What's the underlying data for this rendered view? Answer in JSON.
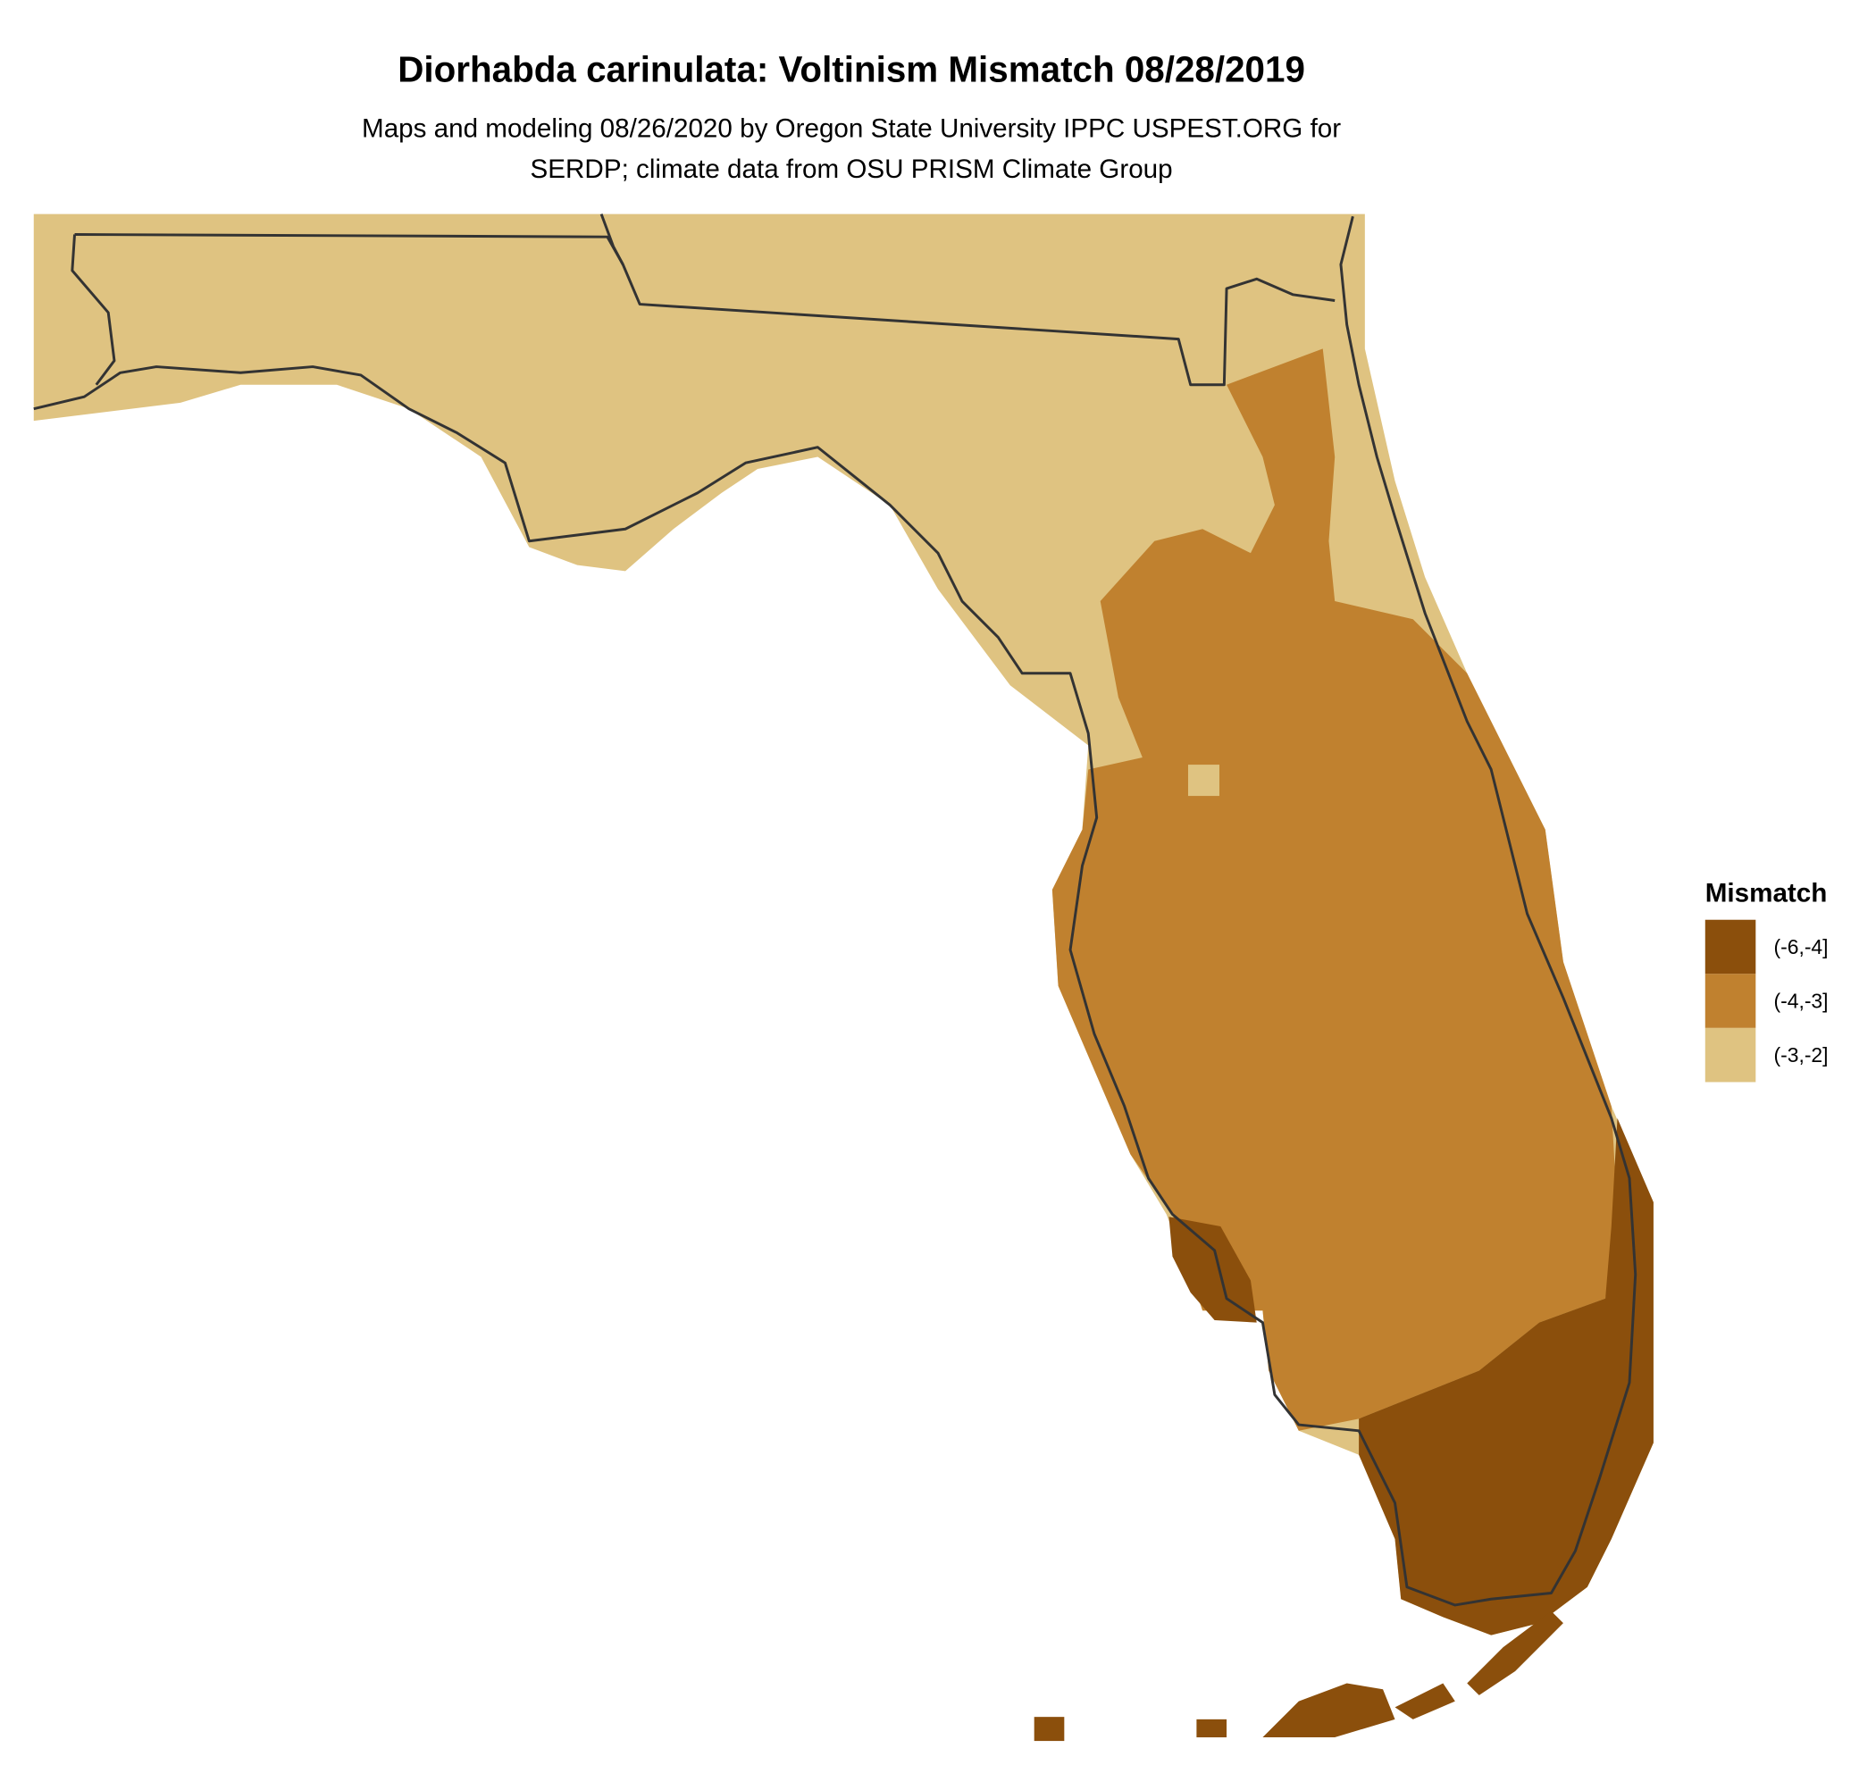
{
  "title": "Diorhabda carinulata: Voltinism Mismatch 08/28/2019",
  "subtitle": [
    "Maps and modeling 08/26/2020 by Oregon State University IPPC USPEST.ORG for",
    "SERDP; climate data from OSU PRISM Climate Group"
  ],
  "legend": {
    "title": "Mismatch",
    "items": [
      {
        "label": "(-6,-4]",
        "color": "#8b4f0c"
      },
      {
        "label": "(-4,-3]",
        "color": "#c0812f"
      },
      {
        "label": "(-3,-2]",
        "color": "#dfc381"
      }
    ]
  }
}
